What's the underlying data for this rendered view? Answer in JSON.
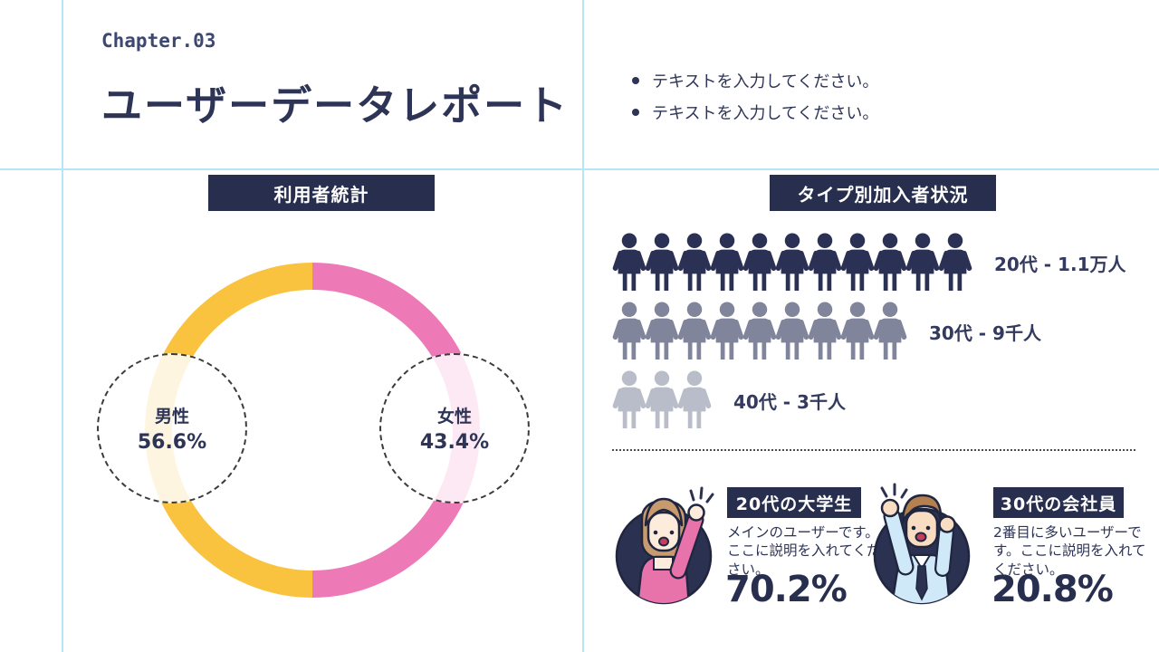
{
  "header": {
    "chapter": "Chapter.03",
    "title": "ユーザーデータレポート",
    "bullets": [
      "テキストを入力してください。",
      "テキストを入力してください。"
    ]
  },
  "left_panel": {
    "badge": "利用者統計"
  },
  "right_panel": {
    "badge": "タイプ別加入者状況"
  },
  "chart_data": [
    {
      "type": "pie",
      "variant": "donut",
      "title": "利用者統計",
      "labels": [
        "男性",
        "女性"
      ],
      "values": [
        56.6,
        43.4
      ],
      "value_labels": [
        "56.6%",
        "43.4%"
      ],
      "colors": [
        "#f9c33f",
        "#ee79b7"
      ],
      "visual_split_percent": 50,
      "legend": "none",
      "annotation_style": "dashed-circle-callouts"
    },
    {
      "type": "pictograph",
      "title": "タイプ別加入者状況",
      "unit_icon": "person-icon",
      "rows": [
        {
          "label": "20代 - 1.1万人",
          "count": 11,
          "value": 11000,
          "color": "#2b3154"
        },
        {
          "label": "30代 - 9千人",
          "count": 9,
          "value": 9000,
          "color": "#81859b"
        },
        {
          "label": "40代 - 3千人",
          "count": 3,
          "value": 3000,
          "color": "#b9bcc9"
        }
      ]
    }
  ],
  "personas": [
    {
      "badge": "20代の大学生",
      "description": "メインのユーザーです。ここに説明を入れてください。",
      "percent": "70.2%",
      "illustration": "female-character"
    },
    {
      "badge": "30代の会社員",
      "description": "2番目に多いユーザーです。ここに説明を入れてください。",
      "percent": "20.8%",
      "illustration": "male-character"
    }
  ],
  "colors": {
    "navy": "#2b3150",
    "pink": "#ee79b7",
    "yellow": "#f9c33f",
    "guide_line_blue": "#b9e3f6",
    "text_navy": "#2d3456"
  }
}
